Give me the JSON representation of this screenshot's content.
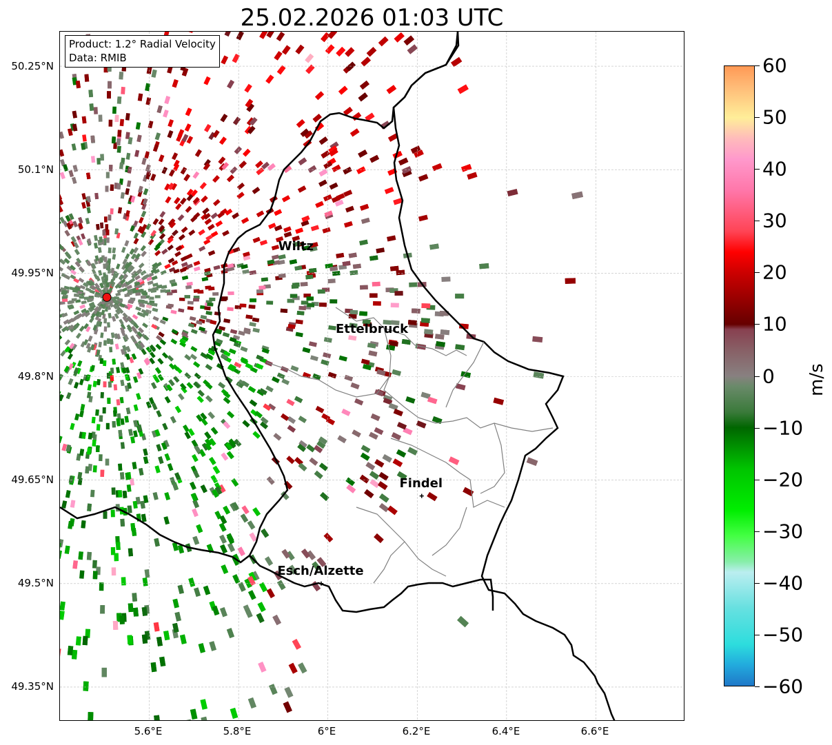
{
  "title": "25.02.2026 01:03 UTC",
  "info": {
    "product": "Product: 1.2° Radial Velocity",
    "data": "Data: RMIB"
  },
  "axes": {
    "lon_range": [
      5.4,
      6.8
    ],
    "lat_range": [
      49.3,
      50.3
    ],
    "x_ticks": [
      "5.6°E",
      "5.8°E",
      "6°E",
      "6.2°E",
      "6.4°E",
      "6.6°E"
    ],
    "x_tick_values": [
      5.6,
      5.8,
      6.0,
      6.2,
      6.4,
      6.6
    ],
    "y_ticks": [
      "50.25°N",
      "50.1°N",
      "49.95°N",
      "49.8°N",
      "49.65°N",
      "49.5°N",
      "49.35°N"
    ],
    "y_tick_values": [
      50.25,
      50.1,
      49.95,
      49.8,
      49.65,
      49.5,
      49.35
    ],
    "grid": true
  },
  "radar": {
    "lon": 5.505,
    "lat": 49.915,
    "color": "#ee1111"
  },
  "cities": [
    {
      "name": "Wiltz",
      "lon": 5.93,
      "lat": 49.97,
      "marker": false
    },
    {
      "name": "Ettelbruck",
      "lon": 6.1,
      "lat": 49.85,
      "marker": false
    },
    {
      "name": "Findel",
      "lon": 6.21,
      "lat": 49.627,
      "marker": true
    },
    {
      "name": "Esch/Alzette",
      "lon": 5.985,
      "lat": 49.5,
      "marker": true
    }
  ],
  "colorbar": {
    "label": "m/s",
    "min": -60,
    "max": 60,
    "ticks": [
      "60",
      "50",
      "40",
      "30",
      "20",
      "10",
      "0",
      "−10",
      "−20",
      "−30",
      "−40",
      "−50",
      "−60"
    ],
    "tick_values": [
      60,
      50,
      40,
      30,
      20,
      10,
      0,
      -10,
      -20,
      -30,
      -40,
      -50,
      -60
    ],
    "stops": [
      {
        "v": -60,
        "color": "#1f78c8"
      },
      {
        "v": -56,
        "color": "#22aadd"
      },
      {
        "v": -52,
        "color": "#2ddddd"
      },
      {
        "v": -45,
        "color": "#66e0e0"
      },
      {
        "v": -38,
        "color": "#bbeef0"
      },
      {
        "v": -36,
        "color": "#88eeaa"
      },
      {
        "v": -31,
        "color": "#44ff44"
      },
      {
        "v": -26,
        "color": "#00ee00"
      },
      {
        "v": -18,
        "color": "#00c400"
      },
      {
        "v": -10,
        "color": "#006600"
      },
      {
        "v": -7,
        "color": "#3a7a3a"
      },
      {
        "v": -2,
        "color": "#6a8a6a"
      },
      {
        "v": 0,
        "color": "#888080"
      },
      {
        "v": 5,
        "color": "#886066"
      },
      {
        "v": 9,
        "color": "#884050"
      },
      {
        "v": 10,
        "color": "#660000"
      },
      {
        "v": 20,
        "color": "#cc0000"
      },
      {
        "v": 24,
        "color": "#ff0000"
      },
      {
        "v": 28,
        "color": "#ff4455"
      },
      {
        "v": 36,
        "color": "#ff77aa"
      },
      {
        "v": 42,
        "color": "#ff99cc"
      },
      {
        "v": 46,
        "color": "#ffbbbb"
      },
      {
        "v": 50,
        "color": "#ffee99"
      },
      {
        "v": 56,
        "color": "#ffbb77"
      },
      {
        "v": 60,
        "color": "#ff9955"
      }
    ]
  },
  "colors": {
    "border": "#000000",
    "canton": "#808080",
    "grid": "#bbbbbb"
  }
}
